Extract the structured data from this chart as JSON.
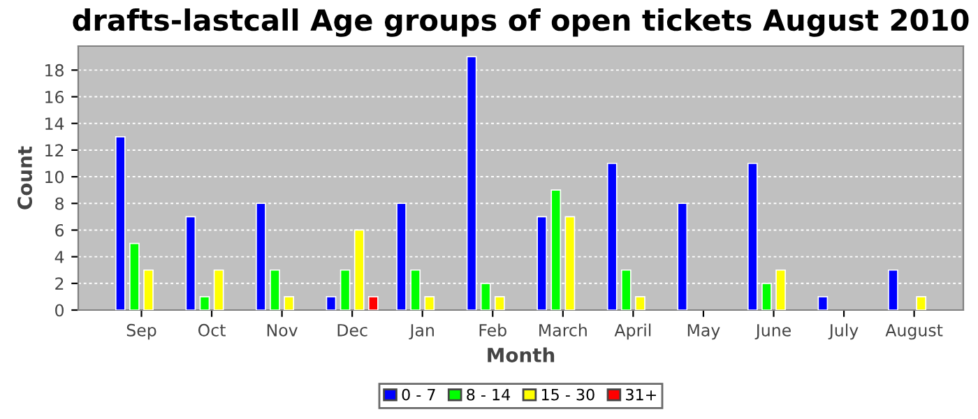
{
  "chart_data": {
    "type": "bar",
    "title": "drafts-lastcall Age groups of open tickets August 2010",
    "xlabel": "Month",
    "ylabel": "Count",
    "categories": [
      "Sep",
      "Oct",
      "Nov",
      "Dec",
      "Jan",
      "Feb",
      "March",
      "April",
      "May",
      "June",
      "July",
      "August"
    ],
    "series": [
      {
        "name": "0 - 7",
        "color": "#0000ff",
        "values": [
          13,
          7,
          8,
          1,
          8,
          19,
          7,
          11,
          8,
          11,
          1,
          3
        ]
      },
      {
        "name": "8 - 14",
        "color": "#00ff00",
        "values": [
          5,
          1,
          3,
          3,
          3,
          2,
          9,
          3,
          0,
          2,
          0,
          0
        ]
      },
      {
        "name": "15 - 30",
        "color": "#ffff00",
        "values": [
          3,
          3,
          1,
          6,
          1,
          1,
          7,
          1,
          0,
          3,
          0,
          1
        ]
      },
      {
        "name": "31+",
        "color": "#ff0000",
        "values": [
          0,
          0,
          0,
          1,
          0,
          0,
          0,
          0,
          0,
          0,
          0,
          0
        ]
      }
    ],
    "ylim": [
      0,
      19.8
    ],
    "yticks": [
      0,
      2,
      4,
      6,
      8,
      10,
      12,
      14,
      16,
      18
    ],
    "grid": "y",
    "legend": "bottom"
  }
}
